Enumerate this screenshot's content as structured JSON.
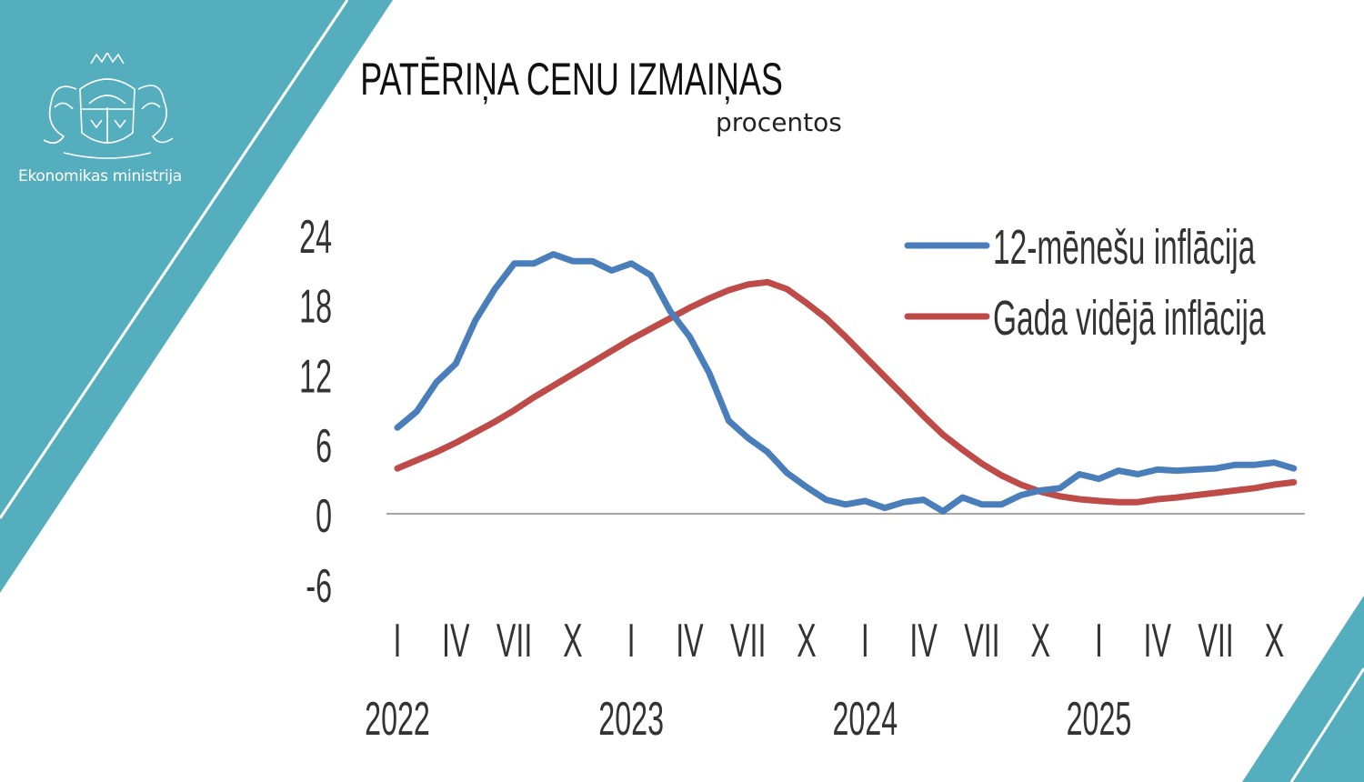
{
  "header": {
    "title": "PATĒRIŅA CENU IZMAIŅAS",
    "subtitle": "procentos",
    "ministry": "Ekonomikas ministrija",
    "logo": "Latvian coat of arms"
  },
  "colors": {
    "accent": "#55aebd",
    "series_blue": "#4a7ebb",
    "series_red": "#be4b48"
  },
  "chart_data": {
    "type": "line",
    "title": "PATĒRIŅA CENU IZMAIŅAS",
    "subtitle": "procentos",
    "ylim": [
      -6,
      24
    ],
    "yticks": [
      "24",
      "18",
      "12",
      "6",
      "0",
      "-6"
    ],
    "ytick_values": [
      24,
      18,
      12,
      6,
      0,
      -6
    ],
    "x_start": "2022-01",
    "x_end": "2025-11",
    "xtick_labels": [
      "I",
      "IV",
      "VII",
      "X",
      "I",
      "IV",
      "VII",
      "X",
      "I",
      "IV",
      "VII",
      "X",
      "I",
      "IV",
      "VII",
      "X"
    ],
    "year_labels": [
      "2022",
      "2023",
      "2024",
      "2025"
    ],
    "legend": "top-right",
    "grid": false,
    "series": [
      {
        "name": "12-mēnešu inflācija",
        "color": "#4a7ebb",
        "values": [
          7.4,
          8.8,
          11.3,
          12.9,
          16.6,
          19.3,
          21.5,
          21.5,
          22.3,
          21.7,
          21.7,
          20.9,
          21.5,
          20.5,
          17.4,
          15.2,
          12.1,
          8.0,
          6.5,
          5.3,
          3.5,
          2.3,
          1.2,
          0.8,
          1.1,
          0.5,
          1.0,
          1.2,
          0.2,
          1.4,
          0.8,
          0.8,
          1.6,
          2.0,
          2.2,
          3.4,
          3.0,
          3.7,
          3.4,
          3.8,
          3.7,
          3.8,
          3.9,
          4.2,
          4.2,
          4.4,
          3.9
        ]
      },
      {
        "name": "Gada vidējā inflācija",
        "color": "#be4b48",
        "values": [
          3.9,
          4.6,
          5.3,
          6.1,
          7.0,
          7.9,
          8.9,
          10.0,
          11.0,
          12.0,
          13.0,
          14.0,
          15.0,
          15.9,
          16.8,
          17.7,
          18.5,
          19.2,
          19.7,
          19.9,
          19.3,
          18.1,
          16.8,
          15.2,
          13.5,
          11.8,
          10.1,
          8.4,
          6.8,
          5.5,
          4.3,
          3.3,
          2.5,
          1.9,
          1.5,
          1.25,
          1.1,
          1.0,
          1.0,
          1.25,
          1.4,
          1.6,
          1.8,
          2.0,
          2.2,
          2.5,
          2.7
        ]
      }
    ]
  }
}
